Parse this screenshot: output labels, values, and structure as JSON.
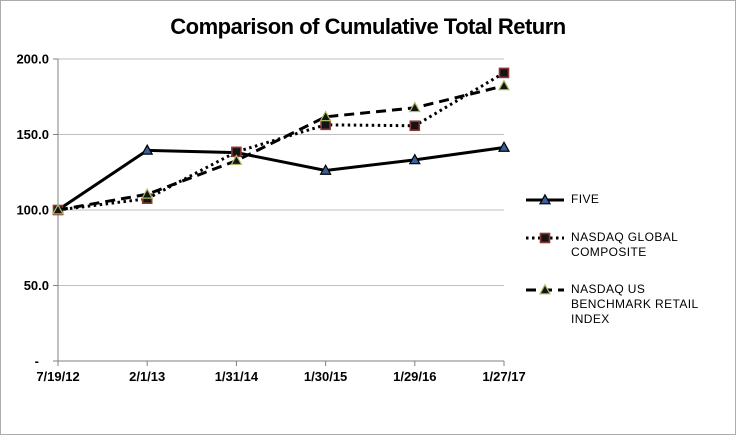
{
  "chart_data": {
    "type": "line",
    "title": "Comparison of Cumulative Total Return",
    "xlabel": "",
    "ylabel": "",
    "ylim": [
      0,
      200
    ],
    "grid": true,
    "legend_position": "right",
    "categories": [
      "7/19/12",
      "2/1/13",
      "1/31/14",
      "1/30/15",
      "1/29/16",
      "1/27/17"
    ],
    "y_ticks": [
      {
        "value": 0,
        "label": "-"
      },
      {
        "value": 50,
        "label": "50.0"
      },
      {
        "value": 100,
        "label": "100.0"
      },
      {
        "value": 150,
        "label": "150.0"
      },
      {
        "value": 200,
        "label": "200.0"
      }
    ],
    "series": [
      {
        "name": "FIVE",
        "values": [
          100.0,
          139.5,
          138.0,
          126.2,
          133.2,
          141.4
        ],
        "line_style": "solid",
        "line_color": "#000000",
        "marker": "triangle",
        "marker_fill": "#3a5f9f",
        "marker_stroke": "#000000"
      },
      {
        "name": "NASDAQ GLOBAL COMPOSITE",
        "values": [
          100.0,
          107.5,
          138.5,
          156.4,
          155.8,
          190.8
        ],
        "line_style": "dotted",
        "line_color": "#000000",
        "marker": "square",
        "marker_fill": "#141414",
        "marker_stroke": "#8e3634"
      },
      {
        "name": "NASDAQ US BENCHMARK RETAIL INDEX",
        "values": [
          100.0,
          110.4,
          132.7,
          161.7,
          167.7,
          182.2
        ],
        "line_style": "dashed",
        "line_color": "#000000",
        "marker": "triangle",
        "marker_fill": "#141414",
        "marker_stroke": "#a6be63"
      }
    ],
    "colors": {
      "gridline": "#bfbfbf",
      "axis": "#808080",
      "text": "#000000",
      "background": "#ffffff"
    }
  }
}
